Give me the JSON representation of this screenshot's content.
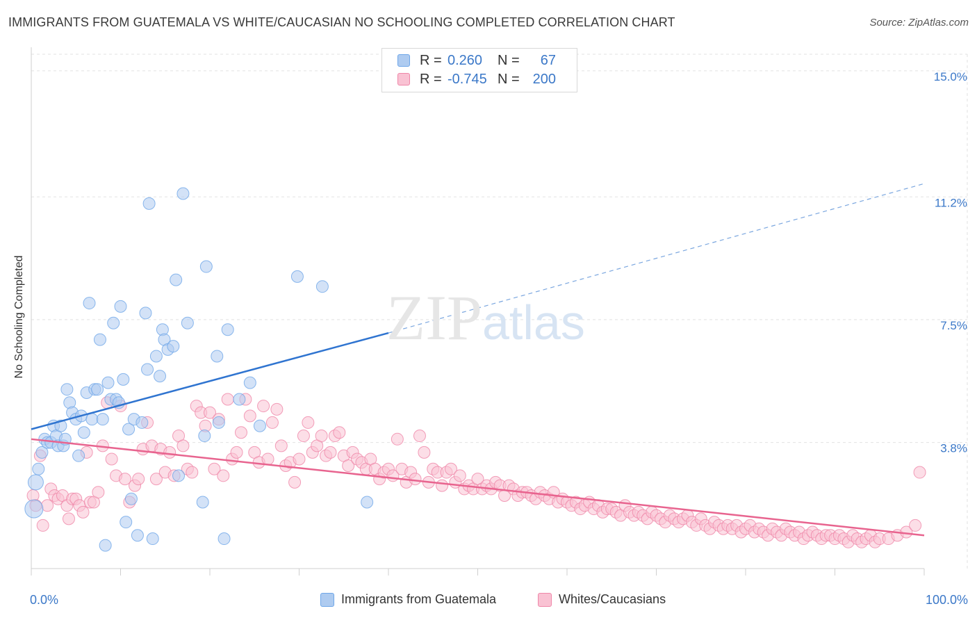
{
  "header": {
    "title": "IMMIGRANTS FROM GUATEMALA VS WHITE/CAUCASIAN NO SCHOOLING COMPLETED CORRELATION CHART",
    "source": "Source: ZipAtlas.com"
  },
  "watermark": {
    "zip": "ZIP",
    "atlas": "atlas"
  },
  "legend": {
    "rows": [
      {
        "r_label": "R =",
        "r_value": "0.260",
        "n_label": "N =",
        "n_value": "67",
        "color": "#6ea6e8",
        "fill": "#aecbf0"
      },
      {
        "r_label": "R =",
        "r_value": "-0.745",
        "n_label": "N =",
        "n_value": "200",
        "color": "#ef86a8",
        "fill": "#f9c2d3"
      }
    ]
  },
  "bottom_legend": {
    "items": [
      {
        "label": "Immigrants from Guatemala"
      },
      {
        "label": "Whites/Caucasians"
      }
    ]
  },
  "chart_data": {
    "type": "scatter",
    "title": "IMMIGRANTS FROM GUATEMALA VS WHITE/CAUCASIAN NO SCHOOLING COMPLETED CORRELATION CHART",
    "xlabel": "",
    "ylabel": "No Schooling Completed",
    "xlim": [
      0,
      100
    ],
    "ylim": [
      0,
      15.5
    ],
    "x_tick_labels": [
      "0.0%",
      "100.0%"
    ],
    "y_ticks": [
      3.8,
      7.5,
      11.2,
      15.0
    ],
    "y_tick_labels": [
      "3.8%",
      "7.5%",
      "11.2%",
      "15.0%"
    ],
    "grid": true,
    "legend_position": "top-center",
    "series": [
      {
        "name": "Immigrants from Guatemala",
        "color": "#6ea6e8",
        "fill": "#aecbf0",
        "trend": {
          "x": [
            0,
            40
          ],
          "y": [
            4.2,
            7.1
          ],
          "dashed_to": [
            100,
            11.6
          ]
        },
        "points": [
          [
            0.3,
            1.8
          ],
          [
            0.5,
            2.6
          ],
          [
            0.8,
            3.0
          ],
          [
            1.2,
            3.5
          ],
          [
            1.5,
            3.9
          ],
          [
            1.8,
            3.8
          ],
          [
            2.2,
            3.8
          ],
          [
            2.5,
            4.3
          ],
          [
            2.8,
            4.0
          ],
          [
            3.0,
            3.7
          ],
          [
            3.3,
            4.3
          ],
          [
            3.6,
            3.7
          ],
          [
            3.8,
            3.9
          ],
          [
            4.0,
            5.4
          ],
          [
            4.3,
            5.0
          ],
          [
            4.6,
            4.7
          ],
          [
            5.0,
            4.5
          ],
          [
            5.3,
            3.4
          ],
          [
            5.6,
            4.6
          ],
          [
            5.9,
            4.1
          ],
          [
            6.2,
            5.3
          ],
          [
            6.5,
            8.0
          ],
          [
            6.8,
            4.5
          ],
          [
            7.1,
            5.4
          ],
          [
            7.4,
            5.4
          ],
          [
            7.7,
            6.9
          ],
          [
            8.0,
            4.5
          ],
          [
            8.3,
            0.7
          ],
          [
            8.6,
            5.6
          ],
          [
            8.9,
            5.1
          ],
          [
            9.2,
            7.4
          ],
          [
            9.5,
            5.1
          ],
          [
            9.8,
            5.0
          ],
          [
            10.0,
            7.9
          ],
          [
            10.3,
            5.7
          ],
          [
            10.6,
            1.4
          ],
          [
            10.9,
            4.2
          ],
          [
            11.2,
            2.1
          ],
          [
            11.5,
            4.5
          ],
          [
            11.9,
            1.0
          ],
          [
            12.4,
            4.4
          ],
          [
            12.8,
            7.7
          ],
          [
            13.0,
            6.0
          ],
          [
            13.2,
            11.0
          ],
          [
            13.6,
            0.9
          ],
          [
            14.0,
            6.4
          ],
          [
            14.4,
            5.8
          ],
          [
            14.7,
            7.2
          ],
          [
            14.9,
            6.9
          ],
          [
            15.3,
            6.6
          ],
          [
            15.9,
            6.7
          ],
          [
            16.2,
            8.7
          ],
          [
            16.5,
            2.8
          ],
          [
            17.0,
            11.3
          ],
          [
            17.5,
            7.4
          ],
          [
            19.2,
            2.0
          ],
          [
            19.4,
            4.0
          ],
          [
            19.6,
            9.1
          ],
          [
            20.8,
            6.4
          ],
          [
            21.0,
            4.4
          ],
          [
            21.6,
            0.9
          ],
          [
            22.0,
            7.2
          ],
          [
            23.3,
            5.1
          ],
          [
            24.5,
            5.6
          ],
          [
            25.6,
            4.3
          ],
          [
            29.8,
            8.8
          ],
          [
            32.6,
            8.5
          ],
          [
            37.6,
            2.0
          ]
        ]
      },
      {
        "name": "Whites/Caucasians",
        "color": "#ef86a8",
        "fill": "#f9c2d3",
        "trend": {
          "x": [
            0,
            100
          ],
          "y": [
            3.9,
            1.0
          ]
        },
        "points": [
          [
            0.2,
            2.2
          ],
          [
            0.5,
            1.9
          ],
          [
            1.0,
            3.4
          ],
          [
            1.3,
            1.3
          ],
          [
            1.8,
            1.9
          ],
          [
            2.2,
            2.4
          ],
          [
            2.6,
            2.2
          ],
          [
            3.0,
            2.1
          ],
          [
            3.5,
            2.2
          ],
          [
            4.0,
            1.9
          ],
          [
            4.2,
            1.5
          ],
          [
            4.6,
            2.1
          ],
          [
            5.0,
            2.1
          ],
          [
            5.4,
            1.9
          ],
          [
            5.8,
            1.7
          ],
          [
            6.2,
            3.5
          ],
          [
            6.6,
            2.0
          ],
          [
            7.0,
            2.0
          ],
          [
            7.5,
            2.3
          ],
          [
            8.0,
            3.7
          ],
          [
            8.5,
            5.0
          ],
          [
            9.0,
            3.3
          ],
          [
            9.5,
            2.8
          ],
          [
            10.0,
            4.9
          ],
          [
            10.5,
            2.7
          ],
          [
            11.0,
            2.0
          ],
          [
            11.6,
            2.5
          ],
          [
            12.0,
            2.7
          ],
          [
            12.5,
            3.6
          ],
          [
            13.0,
            4.4
          ],
          [
            13.5,
            3.7
          ],
          [
            14.0,
            2.7
          ],
          [
            14.5,
            3.6
          ],
          [
            15.0,
            2.9
          ],
          [
            15.5,
            3.5
          ],
          [
            16.0,
            2.8
          ],
          [
            16.5,
            4.0
          ],
          [
            17.0,
            3.7
          ],
          [
            17.5,
            3.0
          ],
          [
            18.0,
            2.9
          ],
          [
            18.5,
            4.9
          ],
          [
            19.0,
            4.7
          ],
          [
            19.5,
            4.3
          ],
          [
            20.0,
            4.7
          ],
          [
            20.5,
            3.0
          ],
          [
            21.0,
            4.5
          ],
          [
            21.5,
            2.8
          ],
          [
            22.0,
            5.1
          ],
          [
            22.5,
            3.3
          ],
          [
            23.0,
            3.5
          ],
          [
            23.5,
            4.1
          ],
          [
            24.0,
            5.1
          ],
          [
            24.5,
            4.6
          ],
          [
            25.0,
            3.5
          ],
          [
            25.5,
            3.2
          ],
          [
            26.0,
            4.9
          ],
          [
            26.5,
            3.3
          ],
          [
            27.0,
            4.4
          ],
          [
            27.5,
            4.8
          ],
          [
            28.0,
            3.7
          ],
          [
            28.5,
            3.1
          ],
          [
            29.0,
            3.2
          ],
          [
            29.5,
            2.6
          ],
          [
            30.0,
            3.3
          ],
          [
            30.5,
            4.0
          ],
          [
            31.0,
            4.4
          ],
          [
            31.5,
            3.5
          ],
          [
            32.0,
            3.7
          ],
          [
            32.5,
            4.0
          ],
          [
            33.0,
            3.4
          ],
          [
            33.5,
            3.5
          ],
          [
            34.0,
            4.0
          ],
          [
            34.5,
            4.1
          ],
          [
            35.0,
            3.4
          ],
          [
            35.5,
            3.1
          ],
          [
            36.0,
            3.5
          ],
          [
            36.5,
            3.3
          ],
          [
            37.0,
            3.2
          ],
          [
            37.5,
            3.0
          ],
          [
            38.0,
            3.3
          ],
          [
            38.5,
            3.0
          ],
          [
            39.0,
            2.7
          ],
          [
            39.5,
            2.9
          ],
          [
            40.0,
            3.0
          ],
          [
            40.5,
            2.8
          ],
          [
            41.0,
            3.9
          ],
          [
            41.5,
            3.0
          ],
          [
            42.0,
            2.6
          ],
          [
            42.5,
            2.9
          ],
          [
            43.0,
            2.7
          ],
          [
            43.5,
            4.0
          ],
          [
            44.0,
            3.5
          ],
          [
            44.5,
            2.6
          ],
          [
            45.0,
            3.0
          ],
          [
            45.5,
            2.9
          ],
          [
            46.0,
            2.5
          ],
          [
            46.5,
            2.9
          ],
          [
            47.0,
            3.0
          ],
          [
            47.5,
            2.6
          ],
          [
            48.0,
            2.8
          ],
          [
            48.5,
            2.4
          ],
          [
            49.0,
            2.5
          ],
          [
            49.5,
            2.4
          ],
          [
            50.0,
            2.7
          ],
          [
            50.5,
            2.4
          ],
          [
            51.0,
            2.5
          ],
          [
            51.5,
            2.4
          ],
          [
            52.0,
            2.6
          ],
          [
            52.5,
            2.5
          ],
          [
            53.0,
            2.2
          ],
          [
            53.5,
            2.5
          ],
          [
            54.0,
            2.4
          ],
          [
            54.5,
            2.2
          ],
          [
            55.0,
            2.3
          ],
          [
            55.5,
            2.3
          ],
          [
            56.0,
            2.2
          ],
          [
            56.5,
            2.1
          ],
          [
            57.0,
            2.3
          ],
          [
            57.5,
            2.2
          ],
          [
            58.0,
            2.1
          ],
          [
            58.5,
            2.3
          ],
          [
            59.0,
            2.0
          ],
          [
            59.5,
            2.1
          ],
          [
            60.0,
            2.0
          ],
          [
            60.5,
            1.9
          ],
          [
            61.0,
            2.0
          ],
          [
            61.5,
            1.8
          ],
          [
            62.0,
            1.9
          ],
          [
            62.5,
            2.0
          ],
          [
            63.0,
            1.8
          ],
          [
            63.5,
            1.9
          ],
          [
            64.0,
            1.7
          ],
          [
            64.5,
            1.8
          ],
          [
            65.0,
            1.8
          ],
          [
            65.5,
            1.7
          ],
          [
            66.0,
            1.6
          ],
          [
            66.5,
            1.9
          ],
          [
            67.0,
            1.7
          ],
          [
            67.5,
            1.6
          ],
          [
            68.0,
            1.7
          ],
          [
            68.5,
            1.6
          ],
          [
            69.0,
            1.5
          ],
          [
            69.5,
            1.7
          ],
          [
            70.0,
            1.6
          ],
          [
            70.5,
            1.5
          ],
          [
            71.0,
            1.4
          ],
          [
            71.5,
            1.6
          ],
          [
            72.0,
            1.5
          ],
          [
            72.5,
            1.4
          ],
          [
            73.0,
            1.5
          ],
          [
            73.5,
            1.6
          ],
          [
            74.0,
            1.4
          ],
          [
            74.5,
            1.3
          ],
          [
            75.0,
            1.5
          ],
          [
            75.5,
            1.3
          ],
          [
            76.0,
            1.2
          ],
          [
            76.5,
            1.4
          ],
          [
            77.0,
            1.3
          ],
          [
            77.5,
            1.2
          ],
          [
            78.0,
            1.3
          ],
          [
            78.5,
            1.2
          ],
          [
            79.0,
            1.3
          ],
          [
            79.5,
            1.1
          ],
          [
            80.0,
            1.2
          ],
          [
            80.5,
            1.3
          ],
          [
            81.0,
            1.1
          ],
          [
            81.5,
            1.2
          ],
          [
            82.0,
            1.1
          ],
          [
            82.5,
            1.0
          ],
          [
            83.0,
            1.2
          ],
          [
            83.5,
            1.1
          ],
          [
            84.0,
            1.0
          ],
          [
            84.5,
            1.2
          ],
          [
            85.0,
            1.1
          ],
          [
            85.5,
            1.0
          ],
          [
            86.0,
            1.1
          ],
          [
            86.5,
            0.9
          ],
          [
            87.0,
            1.0
          ],
          [
            87.5,
            1.1
          ],
          [
            88.0,
            1.0
          ],
          [
            88.5,
            0.9
          ],
          [
            89.0,
            1.0
          ],
          [
            89.5,
            1.0
          ],
          [
            90.0,
            0.9
          ],
          [
            90.5,
            1.0
          ],
          [
            91.0,
            0.9
          ],
          [
            91.5,
            0.8
          ],
          [
            92.0,
            1.0
          ],
          [
            92.5,
            0.9
          ],
          [
            93.0,
            0.8
          ],
          [
            93.5,
            0.9
          ],
          [
            94.0,
            1.0
          ],
          [
            94.5,
            0.8
          ],
          [
            95.0,
            0.9
          ],
          [
            96.0,
            0.9
          ],
          [
            97.0,
            1.0
          ],
          [
            98.0,
            1.1
          ],
          [
            99.0,
            1.3
          ],
          [
            99.5,
            2.9
          ]
        ]
      }
    ]
  }
}
